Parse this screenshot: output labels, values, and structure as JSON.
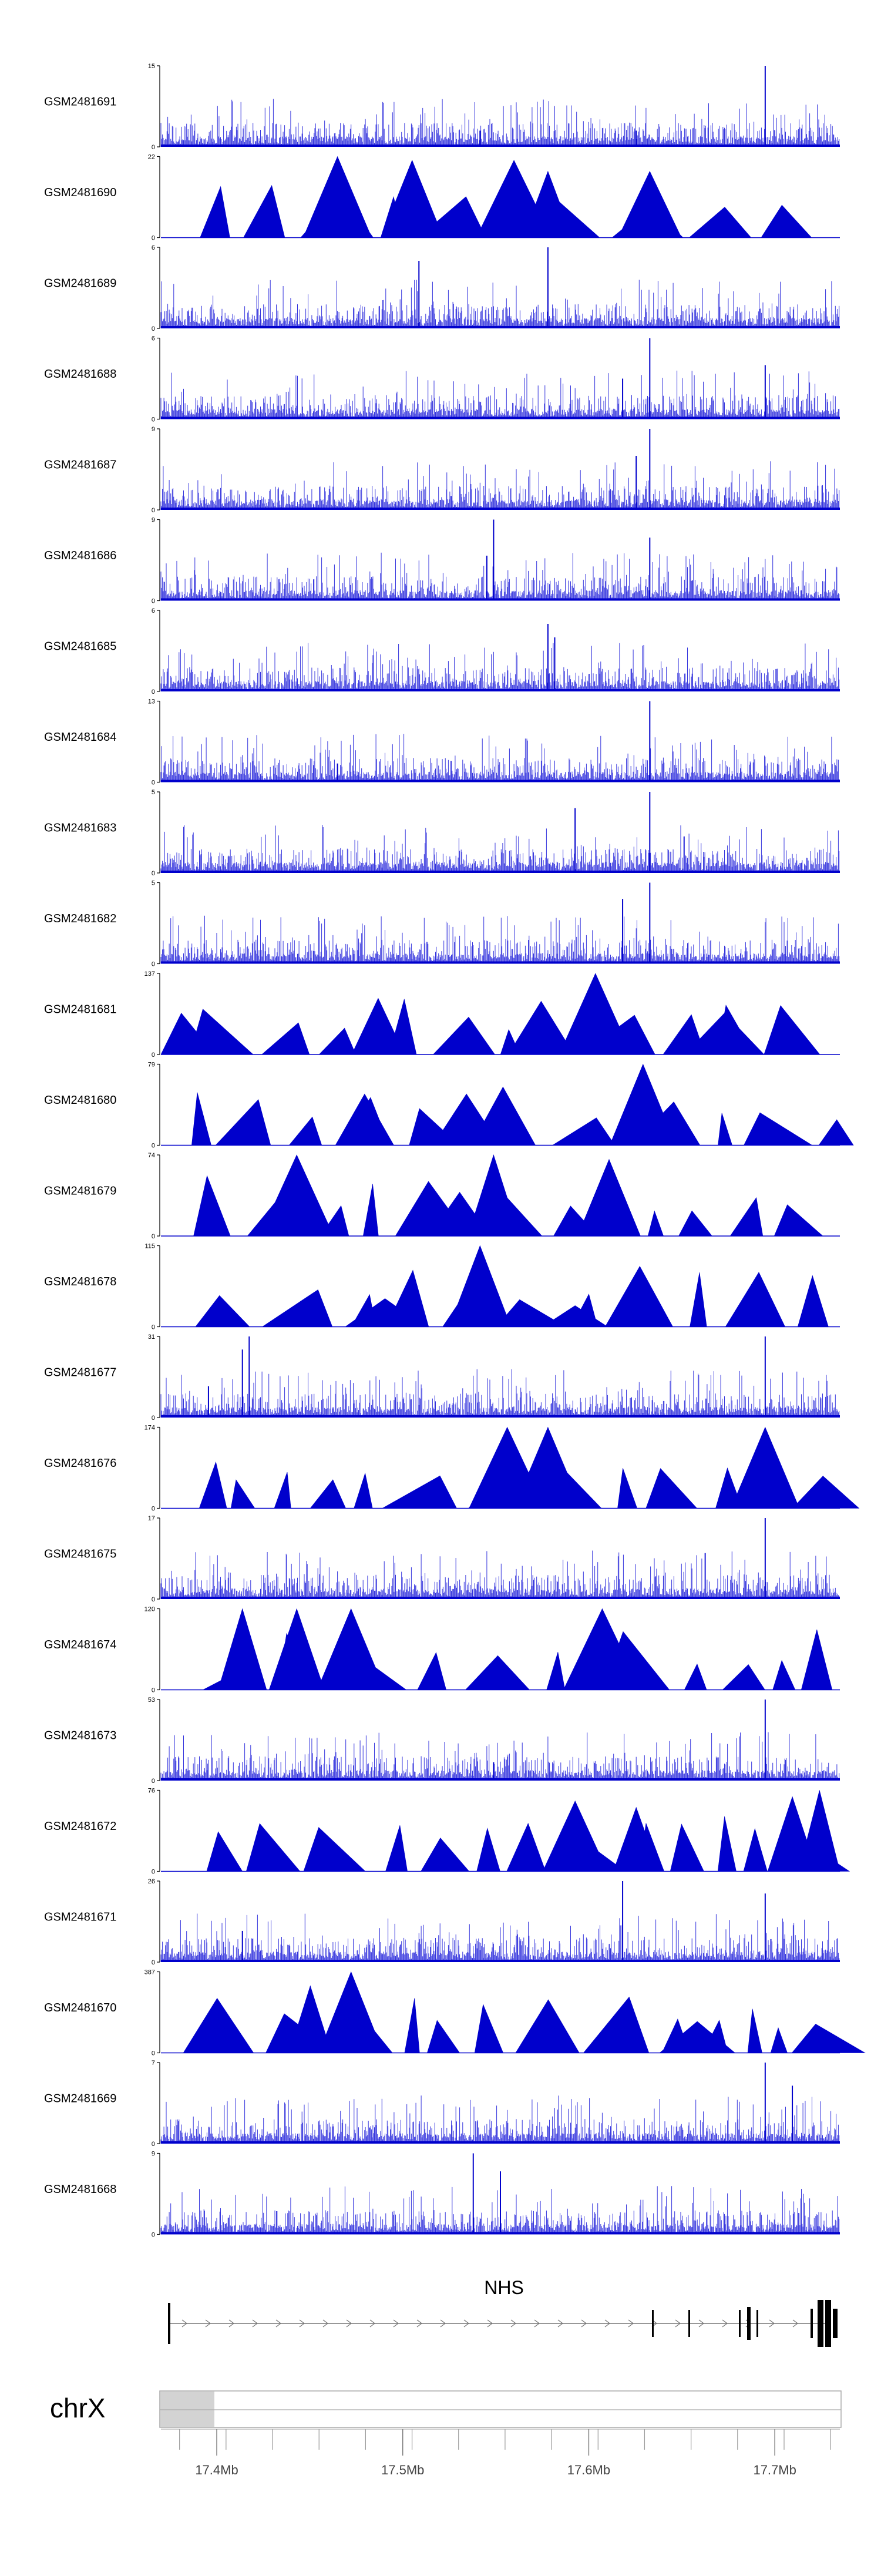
{
  "chart_data": {
    "type": "area",
    "title": "",
    "tracks": [
      {
        "name": "GSM2481691",
        "ymax": "15",
        "ymin": "0",
        "style": "spiky",
        "peaks": [
          [
            0.7,
            3
          ],
          [
            0.89,
            15
          ],
          [
            0.47,
            3
          ]
        ]
      },
      {
        "name": "GSM2481690",
        "ymax": "22",
        "ymin": "0",
        "style": "tri",
        "peaks": [
          [
            0.26,
            22
          ],
          [
            0.37,
            21
          ],
          [
            0.52,
            21
          ],
          [
            0.72,
            18
          ],
          [
            0.57,
            18
          ]
        ]
      },
      {
        "name": "GSM2481689",
        "ymax": "6",
        "ymin": "0",
        "style": "spiky",
        "peaks": [
          [
            0.57,
            6
          ],
          [
            0.38,
            5
          ]
        ]
      },
      {
        "name": "GSM2481688",
        "ymax": "6",
        "ymin": "0",
        "style": "spiky",
        "peaks": [
          [
            0.72,
            6
          ],
          [
            0.89,
            4
          ],
          [
            0.68,
            3
          ]
        ]
      },
      {
        "name": "GSM2481687",
        "ymax": "9",
        "ymin": "0",
        "style": "spiky",
        "peaks": [
          [
            0.72,
            9
          ],
          [
            0.7,
            6
          ]
        ]
      },
      {
        "name": "GSM2481686",
        "ymax": "9",
        "ymin": "0",
        "style": "spiky",
        "peaks": [
          [
            0.49,
            9
          ],
          [
            0.72,
            7
          ],
          [
            0.48,
            5
          ]
        ]
      },
      {
        "name": "GSM2481685",
        "ymax": "6",
        "ymin": "0",
        "style": "spiky",
        "peaks": [
          [
            0.57,
            5
          ],
          [
            0.58,
            4
          ]
        ]
      },
      {
        "name": "GSM2481684",
        "ymax": "13",
        "ymin": "0",
        "style": "spiky",
        "peaks": [
          [
            0.72,
            13
          ],
          [
            0.26,
            3
          ]
        ]
      },
      {
        "name": "GSM2481683",
        "ymax": "5",
        "ymin": "0",
        "style": "spiky",
        "peaks": [
          [
            0.72,
            5
          ],
          [
            0.61,
            4
          ]
        ]
      },
      {
        "name": "GSM2481682",
        "ymax": "5",
        "ymin": "0",
        "style": "spiky",
        "peaks": [
          [
            0.72,
            5
          ],
          [
            0.68,
            4
          ]
        ]
      },
      {
        "name": "GSM2481681",
        "ymax": "137",
        "ymin": "0",
        "style": "tri",
        "peaks": [
          [
            0.64,
            137
          ],
          [
            0.32,
            95
          ],
          [
            0.56,
            90
          ],
          [
            0.03,
            70
          ],
          [
            0.83,
            70
          ],
          [
            0.92,
            70
          ]
        ]
      },
      {
        "name": "GSM2481680",
        "ymax": "79",
        "ymin": "0",
        "style": "tri",
        "peaks": [
          [
            0.71,
            79
          ],
          [
            0.3,
            50
          ],
          [
            0.45,
            50
          ]
        ]
      },
      {
        "name": "GSM2481679",
        "ymax": "74",
        "ymin": "0",
        "style": "tri",
        "peaks": [
          [
            0.2,
            74
          ],
          [
            0.49,
            74
          ],
          [
            0.66,
            70
          ],
          [
            0.44,
            40
          ]
        ]
      },
      {
        "name": "GSM2481678",
        "ymax": "115",
        "ymin": "0",
        "style": "tri",
        "peaks": [
          [
            0.47,
            115
          ],
          [
            0.33,
            40
          ],
          [
            0.61,
            30
          ]
        ]
      },
      {
        "name": "GSM2481677",
        "ymax": "31",
        "ymin": "0",
        "style": "spiky",
        "peaks": [
          [
            0.13,
            31
          ],
          [
            0.89,
            31
          ],
          [
            0.12,
            26
          ],
          [
            0.07,
            12
          ]
        ]
      },
      {
        "name": "GSM2481676",
        "ymax": "174",
        "ymin": "0",
        "style": "tri",
        "peaks": [
          [
            0.51,
            174
          ],
          [
            0.89,
            174
          ],
          [
            0.57,
            174
          ]
        ]
      },
      {
        "name": "GSM2481675",
        "ymax": "17",
        "ymin": "0",
        "style": "spiky",
        "peaks": [
          [
            0.89,
            17
          ]
        ]
      },
      {
        "name": "GSM2481674",
        "ymax": "120",
        "ymin": "0",
        "style": "tri",
        "peaks": [
          [
            0.65,
            120
          ],
          [
            0.12,
            120
          ],
          [
            0.2,
            120
          ],
          [
            0.28,
            120
          ]
        ]
      },
      {
        "name": "GSM2481673",
        "ymax": "53",
        "ymin": "0",
        "style": "spiky",
        "peaks": [
          [
            0.89,
            53
          ],
          [
            0.49,
            12
          ]
        ]
      },
      {
        "name": "GSM2481672",
        "ymax": "76",
        "ymin": "0",
        "style": "tri",
        "peaks": [
          [
            0.97,
            76
          ],
          [
            0.61,
            66
          ],
          [
            0.7,
            60
          ],
          [
            0.93,
            70
          ]
        ]
      },
      {
        "name": "GSM2481671",
        "ymax": "26",
        "ymin": "0",
        "style": "spiky",
        "peaks": [
          [
            0.68,
            26
          ],
          [
            0.89,
            22
          ],
          [
            0.12,
            10
          ]
        ]
      },
      {
        "name": "GSM2481670",
        "ymax": "387",
        "ymin": "0",
        "style": "tri",
        "peaks": [
          [
            0.28,
            387
          ],
          [
            0.22,
            320
          ],
          [
            0.79,
            150
          ]
        ]
      },
      {
        "name": "GSM2481669",
        "ymax": "7",
        "ymin": "0",
        "style": "spiky",
        "peaks": [
          [
            0.89,
            7
          ],
          [
            0.93,
            5
          ]
        ]
      },
      {
        "name": "GSM2481668",
        "ymax": "9",
        "ymin": "0",
        "style": "spiky",
        "peaks": [
          [
            0.46,
            9
          ],
          [
            0.5,
            7
          ]
        ]
      }
    ],
    "gene": {
      "name": "NHS",
      "strand": "+"
    },
    "chromosome": "chrX",
    "x_ticks": [
      "17.4Mb",
      "17.5Mb",
      "17.6Mb",
      "17.7Mb"
    ],
    "x_tick_values": [
      17.4,
      17.5,
      17.6,
      17.7
    ],
    "xlim": [
      17.37,
      17.735
    ],
    "colors": {
      "signal": "#0000CC",
      "signal_light": "#3333DD",
      "axis": "#000000",
      "ideogram": "#d3d3d3"
    }
  }
}
